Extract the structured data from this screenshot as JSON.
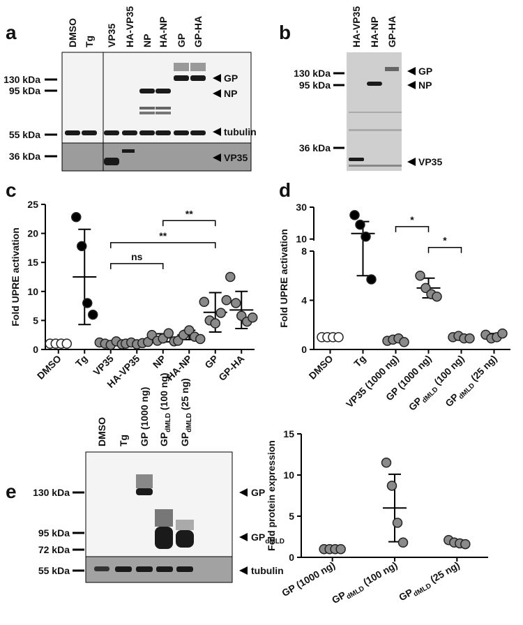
{
  "panel_labels": [
    "a",
    "b",
    "c",
    "d",
    "e"
  ],
  "blot_a": {
    "lanes": [
      "DMSO",
      "Tg",
      "VP35",
      "HA-VP35",
      "NP",
      "HA-NP",
      "GP",
      "GP-HA"
    ],
    "markers": [
      "130 kDa",
      "95 kDa",
      "55 kDa",
      "36 kDa"
    ],
    "bands": [
      "GP",
      "NP",
      "tubulin",
      "VP35"
    ]
  },
  "blot_b": {
    "lanes": [
      "HA-VP35",
      "HA-NP",
      "GP-HA"
    ],
    "markers": [
      "130 kDa",
      "95 kDa",
      "36 kDa"
    ],
    "bands": [
      "GP",
      "NP",
      "VP35"
    ]
  },
  "blot_e": {
    "lanes": [
      {
        "main": "DMSO"
      },
      {
        "main": "Tg"
      },
      {
        "main": "GP (1000 ng)"
      },
      {
        "main": "GP",
        "sub": "dMLD",
        "rest": " (100 ng)"
      },
      {
        "main": "GP",
        "sub": "dMLD",
        "rest": " (25 ng)"
      }
    ],
    "markers": [
      "130 kDa",
      "95 kDa",
      "72 kDa",
      "55 kDa"
    ],
    "bands": [
      {
        "main": "GP"
      },
      {
        "main": "GP",
        "sub": "dMLD"
      },
      {
        "main": "tubulin"
      }
    ]
  },
  "chart_data": [
    {
      "type": "strip",
      "y_label": "Fold UPRE activation",
      "categories": [
        {
          "main": "DMSO"
        },
        {
          "main": "Tg"
        },
        {
          "main": "VP35"
        },
        {
          "main": "HA-VP35"
        },
        {
          "main": "NP"
        },
        {
          "main": "HA-NP"
        },
        {
          "main": "GP"
        },
        {
          "main": "GP-HA"
        }
      ],
      "points": [
        [
          1,
          1,
          1,
          1
        ],
        [
          22.8,
          17.8,
          8,
          6
        ],
        [
          1.2,
          1,
          0.8,
          1.4,
          0.9
        ],
        [
          1,
          1.2,
          0.9,
          1.1,
          1.3
        ],
        [
          2.5,
          1.5,
          1.9,
          2.8,
          1.4
        ],
        [
          1.5,
          2.5,
          3.3,
          2.2,
          1.8
        ],
        [
          8.2,
          5,
          4.5,
          6.3,
          8.5
        ],
        [
          12.5,
          8,
          5.8,
          4.8,
          5.5
        ]
      ],
      "means": [
        1,
        12.5,
        1.1,
        1.1,
        2,
        2.5,
        6.4,
        6.8
      ],
      "sd": [
        0,
        8.2,
        0.2,
        0.2,
        0.7,
        0.8,
        3.4,
        3.2
      ],
      "colors": [
        "#ffffff",
        "#000000",
        "#8a8a8a",
        "#8a8a8a",
        "#8a8a8a",
        "#8a8a8a",
        "#8a8a8a",
        "#8a8a8a"
      ],
      "ylim": [
        0,
        25
      ],
      "yticks": [
        0,
        5,
        10,
        15,
        20,
        25
      ],
      "brackets": [
        {
          "from": 4,
          "to": 6,
          "y": 22.2,
          "label": "**"
        },
        {
          "from": 2,
          "to": 6,
          "y": 18.4,
          "label": "**"
        },
        {
          "from": 2,
          "to": 4,
          "y": 14.8,
          "label": "ns"
        }
      ]
    },
    {
      "type": "strip",
      "y_label": "Fold UPRE activation",
      "categories": [
        {
          "main": "DMSO"
        },
        {
          "main": "Tg"
        },
        {
          "main": "VP35 (1000 ng)"
        },
        {
          "main": "GP (1000 ng)"
        },
        {
          "main": "GP",
          "sub": "dMLD",
          "rest": " (100 ng)"
        },
        {
          "main": "GP",
          "sub": "dMLD",
          "rest": " (25 ng)"
        }
      ],
      "points": [
        [
          1,
          1,
          1,
          1
        ],
        [
          25,
          19,
          11.5,
          5.7
        ],
        [
          0.7,
          0.8,
          0.9,
          0.6
        ],
        [
          6,
          5,
          4.5,
          4.3
        ],
        [
          1,
          1.1,
          0.9,
          0.9
        ],
        [
          1.2,
          0.9,
          1,
          1.3
        ]
      ],
      "means": [
        1,
        13.5,
        0.75,
        5,
        1,
        1.1
      ],
      "sd": [
        0,
        7.5,
        0.1,
        0.8,
        0.1,
        0.2
      ],
      "colors": [
        "#ffffff",
        "#000000",
        "#8a8a8a",
        "#8a8a8a",
        "#8a8a8a",
        "#8a8a8a"
      ],
      "ylim": [
        0,
        8
      ],
      "yticks": [
        0,
        4,
        8
      ],
      "ylim_upper": [
        9,
        30
      ],
      "yticks_upper": [
        10,
        30
      ],
      "brackets": [
        {
          "from": 2,
          "to": 3,
          "y": 17.8,
          "label": "*"
        },
        {
          "from": 3,
          "to": 4,
          "y": 8.3,
          "label": "*"
        }
      ]
    },
    {
      "type": "strip",
      "y_label": "Fold protein expression",
      "categories": [
        {
          "main": "GP (1000 ng)"
        },
        {
          "main": "GP",
          "sub": "dMLD",
          "rest": " (100 ng)"
        },
        {
          "main": "GP",
          "sub": "dMLD",
          "rest": " (25 ng)"
        }
      ],
      "points": [
        [
          1,
          1,
          1,
          1
        ],
        [
          11.5,
          8.7,
          4.2,
          1.8
        ],
        [
          2.1,
          1.8,
          1.7,
          1.6
        ]
      ],
      "means": [
        1,
        6,
        1.8
      ],
      "sd": [
        0,
        4.1,
        0.3
      ],
      "colors": [
        "#8a8a8a",
        "#8a8a8a",
        "#8a8a8a"
      ],
      "ylim": [
        0,
        15
      ],
      "yticks": [
        0,
        5,
        10,
        15
      ]
    }
  ]
}
